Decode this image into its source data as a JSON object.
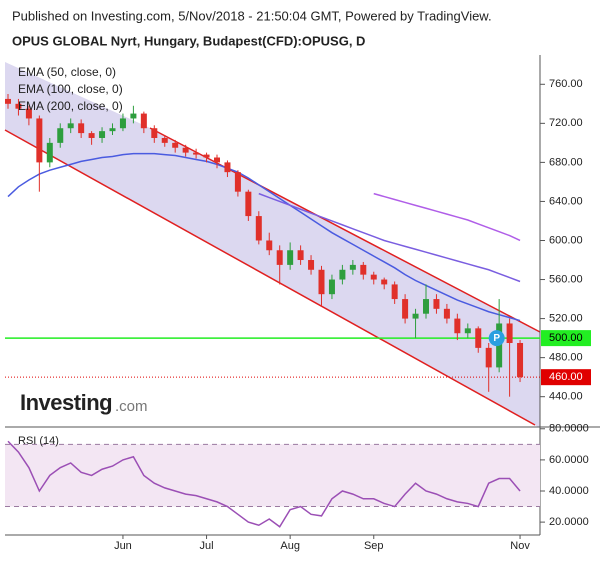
{
  "header": {
    "published": "Published on Investing.com, 5/Nov/2018 - 21:50:04 GMT, Powered by TradingView."
  },
  "logo": {
    "name": "Investing",
    "suffix": ".com"
  },
  "chart_data": [
    {
      "type": "candlestick",
      "title": "OPUS GLOBAL Nyrt, Hungary, Budapest(CFD):OPUSG, D",
      "categories": [
        null,
        null,
        null,
        null,
        null,
        null,
        null,
        null,
        null,
        null,
        null,
        "Jun",
        null,
        null,
        null,
        null,
        null,
        null,
        null,
        "Jul",
        null,
        null,
        null,
        null,
        null,
        null,
        null,
        "Aug",
        null,
        null,
        null,
        null,
        null,
        null,
        null,
        "Sep",
        null,
        null,
        null,
        null,
        null,
        null,
        null,
        null,
        null,
        null,
        null,
        null,
        null,
        "Nov"
      ],
      "open": [
        745,
        740,
        735,
        725,
        680,
        700,
        715,
        720,
        710,
        705,
        712,
        715,
        725,
        730,
        715,
        705,
        700,
        695,
        690,
        688,
        685,
        680,
        670,
        650,
        625,
        600,
        590,
        575,
        590,
        580,
        570,
        545,
        560,
        570,
        575,
        565,
        560,
        555,
        540,
        520,
        525,
        540,
        530,
        520,
        505,
        510,
        490,
        470,
        515,
        495
      ],
      "high": [
        750,
        745,
        738,
        728,
        705,
        720,
        725,
        724,
        712,
        716,
        720,
        730,
        738,
        732,
        718,
        708,
        703,
        698,
        694,
        690,
        688,
        682,
        672,
        652,
        630,
        608,
        595,
        598,
        595,
        585,
        574,
        565,
        575,
        580,
        578,
        568,
        562,
        558,
        545,
        530,
        555,
        545,
        535,
        525,
        515,
        512,
        495,
        540,
        520,
        498
      ],
      "low": [
        735,
        728,
        718,
        650,
        675,
        695,
        710,
        705,
        698,
        700,
        708,
        712,
        720,
        710,
        700,
        696,
        690,
        686,
        684,
        680,
        674,
        665,
        645,
        620,
        596,
        585,
        555,
        570,
        575,
        565,
        532,
        540,
        555,
        565,
        560,
        555,
        550,
        535,
        515,
        500,
        520,
        525,
        515,
        498,
        500,
        485,
        445,
        465,
        440,
        455
      ],
      "close": [
        740,
        735,
        725,
        680,
        700,
        715,
        720,
        710,
        705,
        712,
        715,
        725,
        730,
        715,
        705,
        700,
        695,
        690,
        688,
        685,
        680,
        670,
        650,
        625,
        600,
        590,
        575,
        590,
        580,
        570,
        545,
        560,
        570,
        575,
        565,
        560,
        555,
        540,
        520,
        525,
        540,
        530,
        520,
        505,
        510,
        490,
        470,
        515,
        495,
        460
      ],
      "up_color": "#2e9e3e",
      "down_color": "#e0302a",
      "series": [
        {
          "name": "EMA (50, close, 0)",
          "color": "#4a5be0",
          "values": [
            645,
            655,
            662,
            668,
            672,
            675,
            678,
            681,
            683,
            685,
            686,
            688,
            689,
            689,
            689,
            688,
            687,
            685,
            683,
            681,
            678,
            674,
            670,
            664,
            657,
            650,
            643,
            636,
            629,
            622,
            615,
            608,
            602,
            596,
            590,
            584,
            578,
            572,
            565,
            559,
            554,
            549,
            544,
            539,
            535,
            531,
            527,
            524,
            521,
            518
          ]
        },
        {
          "name": "EMA (100, close, 0)",
          "color": "#7a5ee0",
          "values": [
            null,
            null,
            null,
            null,
            null,
            null,
            null,
            null,
            null,
            null,
            null,
            null,
            null,
            null,
            null,
            null,
            null,
            null,
            null,
            null,
            null,
            null,
            null,
            null,
            648,
            644,
            640,
            636,
            632,
            628,
            624,
            620,
            616,
            612,
            608,
            604,
            600,
            597,
            594,
            591,
            588,
            585,
            582,
            579,
            576,
            573,
            570,
            566,
            562,
            558
          ]
        },
        {
          "name": "EMA (200, close, 0)",
          "color": "#b05ee8",
          "values": [
            null,
            null,
            null,
            null,
            null,
            null,
            null,
            null,
            null,
            null,
            null,
            null,
            null,
            null,
            null,
            null,
            null,
            null,
            null,
            null,
            null,
            null,
            null,
            null,
            null,
            null,
            null,
            null,
            null,
            null,
            null,
            null,
            null,
            null,
            null,
            648,
            645,
            642,
            639,
            636,
            633,
            630,
            627,
            624,
            621,
            617,
            613,
            609,
            605,
            600
          ]
        }
      ],
      "ylim": [
        411,
        790
      ],
      "yticks": [
        {
          "value": 440,
          "label": "440.00"
        },
        {
          "value": 480,
          "label": "480.00"
        },
        {
          "value": 520,
          "label": "520.00"
        },
        {
          "value": 560,
          "label": "560.00"
        },
        {
          "value": 600,
          "label": "600.00"
        },
        {
          "value": 640,
          "label": "640.00"
        },
        {
          "value": 680,
          "label": "680.00"
        },
        {
          "value": 720,
          "label": "720.00"
        },
        {
          "value": 760,
          "label": "760.00"
        }
      ],
      "levels": [
        {
          "value": 500,
          "label": "500.00",
          "color": "#22ee22"
        },
        {
          "value": 460,
          "label": "460.00",
          "color": "#e00000"
        }
      ],
      "marker": "P"
    },
    {
      "type": "line",
      "series": [
        {
          "name": "RSI (14)",
          "color": "#9b4fb5",
          "values": [
            72,
            65,
            55,
            40,
            50,
            55,
            58,
            52,
            50,
            54,
            56,
            60,
            62,
            50,
            45,
            42,
            40,
            38,
            37,
            35,
            33,
            30,
            25,
            20,
            18,
            22,
            17,
            28,
            30,
            25,
            24,
            35,
            40,
            38,
            35,
            35,
            32,
            30,
            38,
            45,
            40,
            38,
            35,
            33,
            32,
            30,
            45,
            48,
            48,
            40
          ]
        }
      ],
      "ylim": [
        13,
        80.5
      ],
      "yticks": [
        {
          "value": 20,
          "label": "20.0000"
        },
        {
          "value": 40,
          "label": "40.0000"
        },
        {
          "value": 60,
          "label": "60.0000"
        },
        {
          "value": 80,
          "label": "80.0000"
        }
      ],
      "band": [
        30,
        70
      ]
    }
  ]
}
